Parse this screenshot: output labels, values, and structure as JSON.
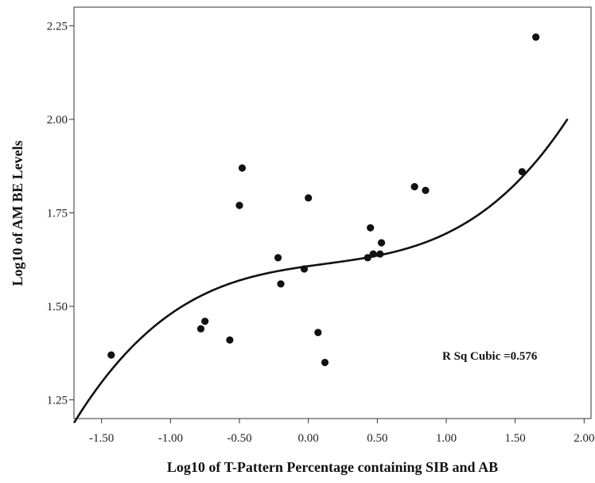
{
  "chart_data": {
    "type": "scatter",
    "xlabel": "Log10 of T-Pattern Percentage containing SIB and AB",
    "ylabel": "Log10 of AM BE Levels",
    "xlim": [
      -1.7,
      2.05
    ],
    "ylim": [
      1.2,
      2.3
    ],
    "x_ticks": [
      -1.5,
      -1.0,
      -0.5,
      0.0,
      0.5,
      1.0,
      1.5,
      2.0
    ],
    "x_tick_labels": [
      "-1.50",
      "-1.00",
      "-0.50",
      "0.00",
      "0.50",
      "1.00",
      "1.50",
      "2.00"
    ],
    "y_ticks": [
      1.25,
      1.5,
      1.75,
      2.0,
      2.25
    ],
    "y_tick_labels": [
      "1.25",
      "1.50",
      "1.75",
      "2.00",
      "2.25"
    ],
    "grid": false,
    "points": [
      {
        "x": -1.43,
        "y": 1.37
      },
      {
        "x": -0.78,
        "y": 1.44
      },
      {
        "x": -0.75,
        "y": 1.46
      },
      {
        "x": -0.57,
        "y": 1.41
      },
      {
        "x": -0.5,
        "y": 1.77
      },
      {
        "x": -0.48,
        "y": 1.87
      },
      {
        "x": -0.22,
        "y": 1.63
      },
      {
        "x": -0.2,
        "y": 1.56
      },
      {
        "x": -0.03,
        "y": 1.6
      },
      {
        "x": 0.0,
        "y": 1.79
      },
      {
        "x": 0.07,
        "y": 1.43
      },
      {
        "x": 0.12,
        "y": 1.35
      },
      {
        "x": 0.43,
        "y": 1.63
      },
      {
        "x": 0.45,
        "y": 1.71
      },
      {
        "x": 0.47,
        "y": 1.64
      },
      {
        "x": 0.52,
        "y": 1.64
      },
      {
        "x": 0.53,
        "y": 1.67
      },
      {
        "x": 0.77,
        "y": 1.82
      },
      {
        "x": 0.85,
        "y": 1.81
      },
      {
        "x": 1.55,
        "y": 1.86
      },
      {
        "x": 1.65,
        "y": 2.22
      }
    ],
    "fit": {
      "type": "cubic",
      "coefficients": [
        1.6075,
        0.0525,
        -0.0203,
        0.0552
      ],
      "x_range": [
        -1.7,
        1.88
      ],
      "label": "R Sq Cubic =0.576"
    }
  }
}
